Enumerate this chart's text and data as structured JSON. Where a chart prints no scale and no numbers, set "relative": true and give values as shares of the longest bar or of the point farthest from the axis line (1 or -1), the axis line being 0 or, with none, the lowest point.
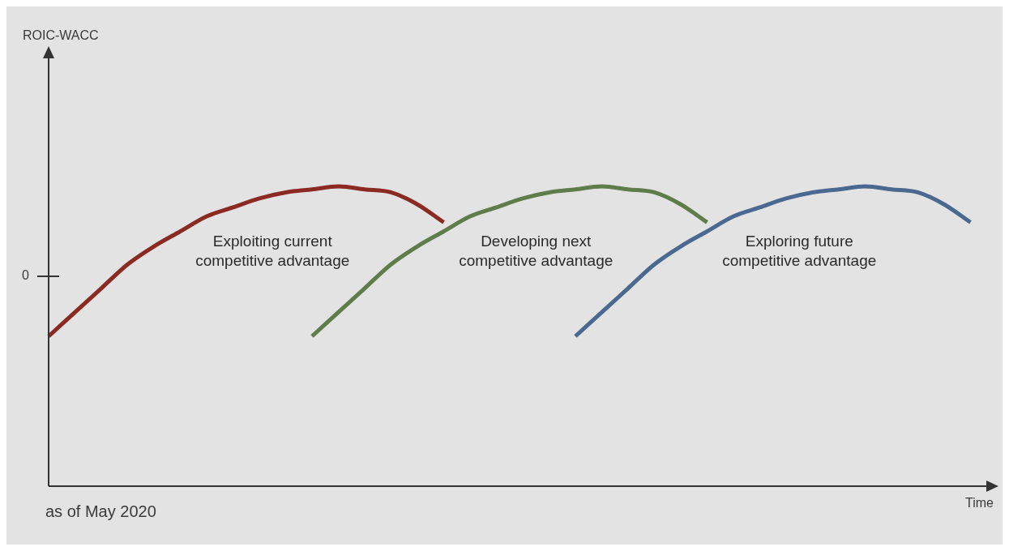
{
  "chart_data": {
    "type": "line",
    "relative": true,
    "xlabel": "Time",
    "legend": false,
    "marker": "none",
    "categories": [
      null,
      null,
      null,
      null,
      null,
      null,
      null,
      null,
      null,
      null,
      null,
      null,
      null,
      null,
      null,
      null,
      null,
      null,
      null,
      null,
      null,
      null,
      null,
      null,
      null,
      null,
      null,
      null,
      null,
      null,
      null,
      null,
      null,
      null,
      null,
      null,
      null
    ],
    "series": [
      {
        "name": "Exploiting current competitive advantage",
        "color": "#8b2a22",
        "values": [
          0.5,
          0.58,
          0.66,
          0.74,
          0.8,
          0.85,
          0.9,
          0.93,
          0.96,
          0.98,
          0.99,
          1,
          0.99,
          0.98,
          0.94,
          0.88,
          null,
          null,
          null,
          null,
          null,
          null,
          null,
          null,
          null,
          null,
          null,
          null,
          null,
          null,
          null,
          null,
          null,
          null,
          null,
          null,
          null
        ]
      },
      {
        "name": "Developing next competitive advantage",
        "color": "#5e7d4a",
        "values": [
          null,
          null,
          null,
          null,
          null,
          null,
          null,
          null,
          null,
          null,
          0.5,
          0.58,
          0.66,
          0.74,
          0.8,
          0.85,
          0.9,
          0.93,
          0.96,
          0.98,
          0.99,
          1,
          0.99,
          0.98,
          0.94,
          0.88,
          null,
          null,
          null,
          null,
          null,
          null,
          null,
          null,
          null,
          null,
          null
        ]
      },
      {
        "name": "Exploring future competitive advantage",
        "color": "#4a6890",
        "values": [
          null,
          null,
          null,
          null,
          null,
          null,
          null,
          null,
          null,
          null,
          null,
          null,
          null,
          null,
          null,
          null,
          null,
          null,
          null,
          null,
          0.5,
          0.58,
          0.66,
          0.74,
          0.8,
          0.85,
          0.9,
          0.93,
          0.96,
          0.98,
          0.99,
          1,
          0.99,
          0.98,
          0.94,
          0.88,
          null
        ]
      }
    ],
    "annotations": [
      "ROIC-WACC",
      "0",
      "as of May 2020"
    ]
  }
}
